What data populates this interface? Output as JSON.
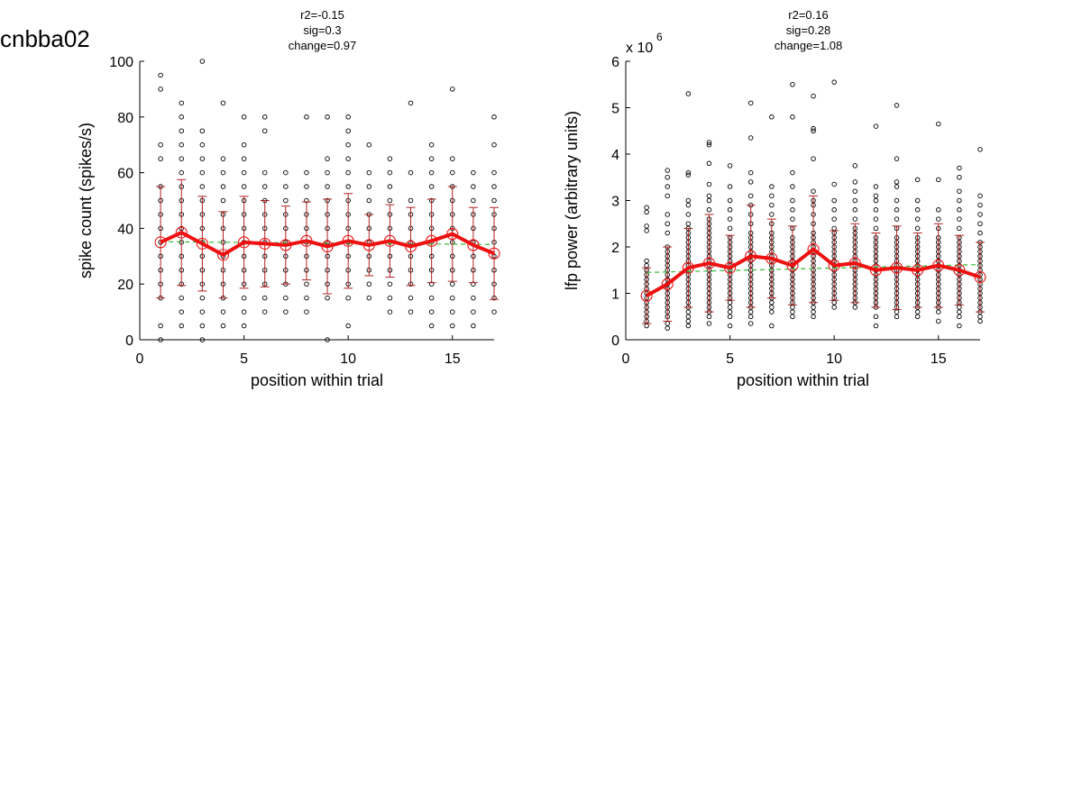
{
  "figure": {
    "title": "cnbba02"
  },
  "colors": {
    "points": "#000000",
    "mean_line": "#ee1111",
    "error_bars": "#b02020",
    "fit_line": "#33bb33",
    "axis": "#000000"
  },
  "chart_data": [
    {
      "type": "scatter",
      "subtitle": [
        "r2=-0.15",
        "sig=0.3",
        "change=0.97"
      ],
      "xlabel": "position within trial",
      "ylabel": "spike count (spikes/s)",
      "xlim": [
        0,
        17
      ],
      "ylim": [
        0,
        100
      ],
      "xticks": [
        0,
        5,
        10,
        15
      ],
      "yticks": [
        0,
        20,
        40,
        60,
        80,
        100
      ],
      "y_multiplier_label": "",
      "grid": false,
      "mean_series": {
        "x": [
          1,
          2,
          3,
          4,
          5,
          6,
          7,
          8,
          9,
          10,
          11,
          12,
          13,
          14,
          15,
          16,
          17
        ],
        "mean": [
          35,
          38.5,
          34.5,
          30.5,
          35,
          34.5,
          34,
          35.5,
          33.5,
          35.5,
          34,
          35.5,
          33.5,
          35.5,
          38,
          34,
          31
        ],
        "sd": [
          20,
          19,
          17,
          15.5,
          16.5,
          15.5,
          14,
          14,
          17,
          17,
          11,
          13,
          14,
          15,
          17,
          13.5,
          16.5
        ]
      },
      "fit_line": {
        "x": [
          1,
          17
        ],
        "y": [
          35.2,
          34.2
        ]
      },
      "points": [
        {
          "x": 1,
          "y": [
            0,
            5,
            15,
            20,
            25,
            30,
            35,
            40,
            45,
            50,
            55,
            65,
            70,
            90,
            95
          ]
        },
        {
          "x": 2,
          "y": [
            5,
            10,
            15,
            20,
            25,
            30,
            35,
            40,
            45,
            50,
            55,
            60,
            65,
            70,
            75,
            80,
            85
          ]
        },
        {
          "x": 3,
          "y": [
            0,
            5,
            10,
            15,
            20,
            25,
            30,
            35,
            40,
            45,
            50,
            55,
            60,
            65,
            70,
            75,
            100
          ]
        },
        {
          "x": 4,
          "y": [
            5,
            10,
            15,
            20,
            25,
            30,
            35,
            40,
            45,
            50,
            55,
            60,
            65,
            85
          ]
        },
        {
          "x": 5,
          "y": [
            5,
            10,
            15,
            20,
            25,
            30,
            35,
            40,
            45,
            50,
            55,
            60,
            65,
            70,
            80
          ]
        },
        {
          "x": 6,
          "y": [
            10,
            15,
            20,
            25,
            30,
            35,
            40,
            45,
            50,
            55,
            60,
            75,
            80
          ]
        },
        {
          "x": 7,
          "y": [
            10,
            15,
            20,
            25,
            30,
            35,
            40,
            45,
            50,
            55,
            60
          ]
        },
        {
          "x": 8,
          "y": [
            10,
            15,
            20,
            25,
            30,
            35,
            40,
            45,
            50,
            55,
            60,
            80
          ]
        },
        {
          "x": 9,
          "y": [
            0,
            15,
            20,
            25,
            30,
            35,
            40,
            45,
            50,
            55,
            60,
            65,
            80
          ]
        },
        {
          "x": 10,
          "y": [
            5,
            15,
            20,
            25,
            30,
            35,
            40,
            45,
            50,
            55,
            60,
            65,
            70,
            75,
            80
          ]
        },
        {
          "x": 11,
          "y": [
            15,
            20,
            25,
            30,
            35,
            40,
            45,
            50,
            55,
            60,
            70
          ]
        },
        {
          "x": 12,
          "y": [
            10,
            15,
            20,
            25,
            30,
            35,
            40,
            45,
            50,
            55,
            60,
            65
          ]
        },
        {
          "x": 13,
          "y": [
            10,
            15,
            20,
            25,
            30,
            35,
            40,
            45,
            50,
            60,
            85
          ]
        },
        {
          "x": 14,
          "y": [
            5,
            10,
            15,
            20,
            25,
            30,
            35,
            40,
            45,
            50,
            55,
            60,
            65,
            70
          ]
        },
        {
          "x": 15,
          "y": [
            5,
            10,
            15,
            20,
            25,
            30,
            35,
            40,
            45,
            50,
            55,
            60,
            65,
            90
          ]
        },
        {
          "x": 16,
          "y": [
            5,
            10,
            15,
            20,
            25,
            30,
            35,
            40,
            45,
            50,
            55,
            60
          ]
        },
        {
          "x": 17,
          "y": [
            10,
            15,
            20,
            25,
            30,
            35,
            40,
            45,
            50,
            55,
            60,
            70,
            80
          ]
        }
      ]
    },
    {
      "type": "scatter",
      "subtitle": [
        "r2=0.16",
        "sig=0.28",
        "change=1.08"
      ],
      "xlabel": "position within trial",
      "ylabel": "lfp power (arbitrary units)",
      "xlim": [
        0,
        17
      ],
      "ylim": [
        0,
        6
      ],
      "xticks": [
        0,
        5,
        10,
        15
      ],
      "yticks": [
        0,
        1,
        2,
        3,
        4,
        5,
        6
      ],
      "y_multiplier_label": "x 10",
      "y_multiplier_exponent": "6",
      "grid": false,
      "mean_series": {
        "x": [
          1,
          2,
          3,
          4,
          5,
          6,
          7,
          8,
          9,
          10,
          11,
          12,
          13,
          14,
          15,
          16,
          17
        ],
        "mean": [
          0.95,
          1.2,
          1.55,
          1.65,
          1.55,
          1.8,
          1.75,
          1.6,
          1.95,
          1.6,
          1.65,
          1.5,
          1.55,
          1.5,
          1.6,
          1.5,
          1.35
        ],
        "sd": [
          0.6,
          0.8,
          0.85,
          1.05,
          0.7,
          1.1,
          0.85,
          0.85,
          1.15,
          0.75,
          0.85,
          0.8,
          0.9,
          0.8,
          0.9,
          0.75,
          0.75
        ]
      },
      "fit_line": {
        "x": [
          1,
          17
        ],
        "y": [
          1.45,
          1.62
        ]
      },
      "points": [
        {
          "x": 1,
          "y": [
            0.3,
            0.4,
            0.5,
            0.6,
            0.7,
            0.8,
            0.9,
            1.0,
            1.1,
            1.2,
            1.3,
            1.4,
            1.5,
            1.6,
            1.7,
            2.35,
            2.45,
            2.75,
            2.85
          ]
        },
        {
          "x": 2,
          "y": [
            0.25,
            0.35,
            0.5,
            0.6,
            0.7,
            0.8,
            0.9,
            1.0,
            1.1,
            1.2,
            1.3,
            1.4,
            1.5,
            1.6,
            1.7,
            1.8,
            1.9,
            2.0,
            2.3,
            2.5,
            2.7,
            3.1,
            3.3,
            3.5,
            3.65
          ]
        },
        {
          "x": 3,
          "y": [
            0.3,
            0.4,
            0.5,
            0.6,
            0.7,
            0.8,
            0.9,
            1.0,
            1.1,
            1.2,
            1.3,
            1.4,
            1.5,
            1.6,
            1.7,
            1.8,
            1.9,
            2.0,
            2.1,
            2.2,
            2.3,
            2.4,
            2.5,
            2.7,
            2.9,
            3.0,
            3.55,
            3.6,
            5.3
          ]
        },
        {
          "x": 4,
          "y": [
            0.35,
            0.5,
            0.6,
            0.7,
            0.8,
            0.9,
            1.0,
            1.1,
            1.2,
            1.3,
            1.4,
            1.5,
            1.6,
            1.7,
            1.8,
            1.9,
            2.0,
            2.1,
            2.2,
            2.3,
            2.4,
            2.5,
            2.6,
            2.8,
            3.0,
            3.1,
            3.35,
            3.8,
            4.2,
            4.25
          ]
        },
        {
          "x": 5,
          "y": [
            0.3,
            0.5,
            0.6,
            0.7,
            0.8,
            0.9,
            1.0,
            1.1,
            1.2,
            1.3,
            1.4,
            1.5,
            1.6,
            1.7,
            1.8,
            1.9,
            2.0,
            2.1,
            2.2,
            2.4,
            2.6,
            2.8,
            3.0,
            3.3,
            3.75
          ]
        },
        {
          "x": 6,
          "y": [
            0.35,
            0.5,
            0.6,
            0.7,
            0.8,
            0.9,
            1.0,
            1.1,
            1.2,
            1.3,
            1.4,
            1.5,
            1.6,
            1.7,
            1.8,
            1.9,
            2.0,
            2.1,
            2.2,
            2.3,
            2.5,
            2.7,
            2.9,
            3.1,
            3.4,
            3.6,
            4.35,
            5.1
          ]
        },
        {
          "x": 7,
          "y": [
            0.3,
            0.6,
            0.7,
            0.8,
            0.9,
            1.0,
            1.1,
            1.2,
            1.3,
            1.4,
            1.5,
            1.6,
            1.7,
            1.8,
            1.9,
            2.0,
            2.1,
            2.2,
            2.3,
            2.5,
            2.7,
            2.9,
            3.1,
            3.3,
            4.8
          ]
        },
        {
          "x": 8,
          "y": [
            0.5,
            0.6,
            0.7,
            0.8,
            0.9,
            1.0,
            1.1,
            1.2,
            1.3,
            1.4,
            1.5,
            1.6,
            1.7,
            1.8,
            1.9,
            2.0,
            2.1,
            2.2,
            2.4,
            2.6,
            2.8,
            3.0,
            3.3,
            3.6,
            4.8,
            5.5
          ]
        },
        {
          "x": 9,
          "y": [
            0.5,
            0.6,
            0.7,
            0.8,
            0.9,
            1.0,
            1.1,
            1.2,
            1.3,
            1.4,
            1.5,
            1.6,
            1.7,
            1.8,
            1.9,
            2.0,
            2.1,
            2.2,
            2.3,
            2.5,
            2.7,
            2.9,
            3.0,
            3.2,
            3.9,
            4.5,
            4.55,
            5.25
          ]
        },
        {
          "x": 10,
          "y": [
            0.7,
            0.8,
            0.9,
            1.0,
            1.1,
            1.2,
            1.3,
            1.4,
            1.5,
            1.6,
            1.7,
            1.8,
            1.9,
            2.0,
            2.1,
            2.2,
            2.3,
            2.4,
            2.6,
            2.8,
            3.0,
            3.35,
            5.55
          ]
        },
        {
          "x": 11,
          "y": [
            0.7,
            0.8,
            0.9,
            1.0,
            1.1,
            1.2,
            1.3,
            1.4,
            1.5,
            1.6,
            1.7,
            1.8,
            1.9,
            2.0,
            2.1,
            2.2,
            2.3,
            2.4,
            2.6,
            2.8,
            3.0,
            3.2,
            3.4,
            3.75
          ]
        },
        {
          "x": 12,
          "y": [
            0.3,
            0.5,
            0.7,
            0.8,
            0.9,
            1.0,
            1.1,
            1.2,
            1.3,
            1.4,
            1.5,
            1.6,
            1.7,
            1.8,
            1.9,
            2.0,
            2.1,
            2.2,
            2.4,
            2.6,
            2.8,
            3.0,
            3.1,
            3.3,
            4.6
          ]
        },
        {
          "x": 13,
          "y": [
            0.5,
            0.6,
            0.7,
            0.8,
            0.9,
            1.0,
            1.1,
            1.2,
            1.3,
            1.4,
            1.5,
            1.6,
            1.7,
            1.8,
            1.9,
            2.0,
            2.1,
            2.2,
            2.4,
            2.6,
            2.8,
            3.0,
            3.3,
            3.4,
            3.9,
            5.05
          ]
        },
        {
          "x": 14,
          "y": [
            0.5,
            0.6,
            0.7,
            0.8,
            0.9,
            1.0,
            1.1,
            1.2,
            1.3,
            1.4,
            1.5,
            1.6,
            1.7,
            1.8,
            1.9,
            2.0,
            2.1,
            2.2,
            2.4,
            2.6,
            2.8,
            3.0,
            3.45
          ]
        },
        {
          "x": 15,
          "y": [
            0.4,
            0.6,
            0.7,
            0.8,
            0.9,
            1.0,
            1.1,
            1.2,
            1.3,
            1.4,
            1.5,
            1.6,
            1.7,
            1.8,
            1.9,
            2.0,
            2.1,
            2.2,
            2.4,
            2.6,
            2.8,
            3.45,
            4.65
          ]
        },
        {
          "x": 16,
          "y": [
            0.3,
            0.5,
            0.6,
            0.7,
            0.8,
            0.9,
            1.0,
            1.1,
            1.2,
            1.3,
            1.4,
            1.5,
            1.6,
            1.7,
            1.8,
            1.9,
            2.0,
            2.1,
            2.2,
            2.4,
            2.6,
            2.8,
            3.0,
            3.2,
            3.5,
            3.7
          ]
        },
        {
          "x": 17,
          "y": [
            0.4,
            0.5,
            0.6,
            0.7,
            0.8,
            0.9,
            1.0,
            1.1,
            1.2,
            1.3,
            1.4,
            1.5,
            1.6,
            1.7,
            1.8,
            1.9,
            2.0,
            2.1,
            2.3,
            2.5,
            2.7,
            2.9,
            3.1,
            4.1
          ]
        }
      ]
    }
  ]
}
